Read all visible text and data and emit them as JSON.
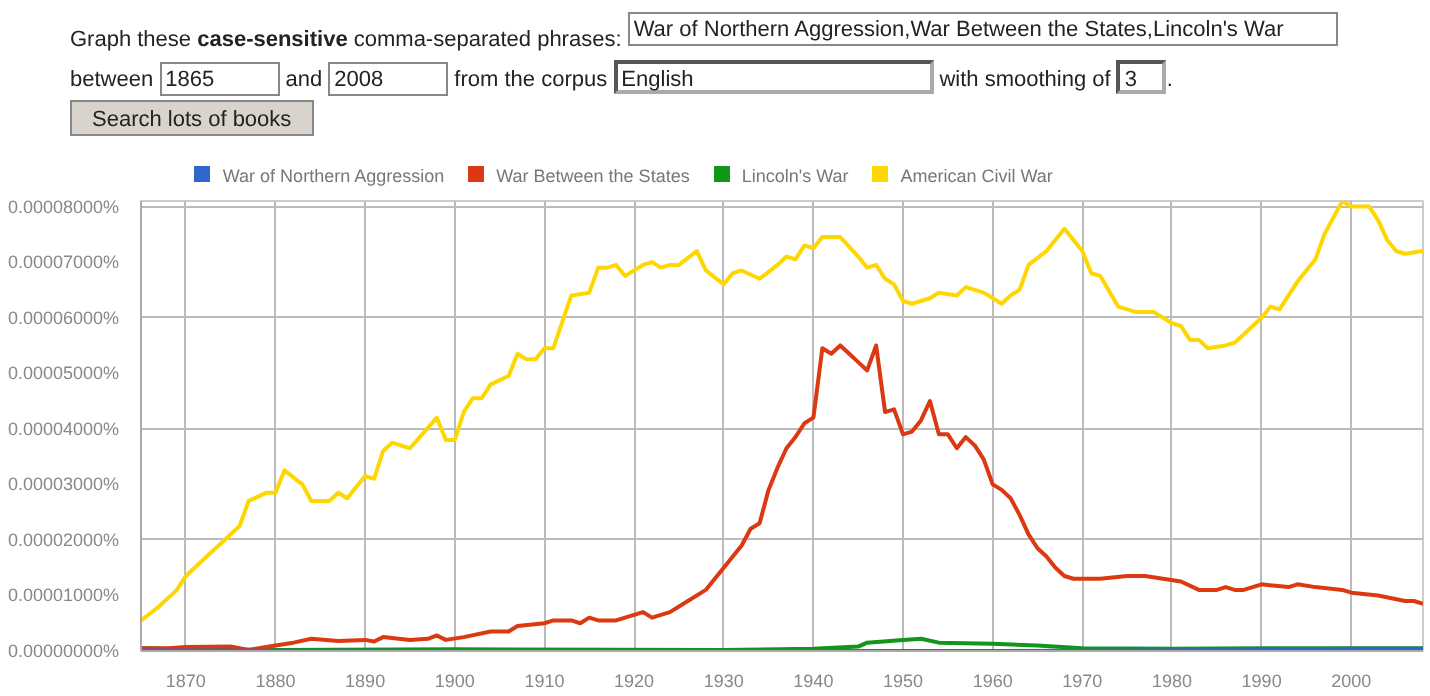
{
  "chart_data": {
    "type": "line",
    "annotations": [
      "Graph these",
      "case-sensitive",
      "comma-separated phrases:",
      "War of Northern Aggression,War Between the States,Lincoln's War",
      "between",
      "1865",
      "and",
      "2008",
      "from the corpus",
      "English",
      "with smoothing of",
      "3",
      ".",
      "Search lots of books"
    ],
    "xlim": [
      1865,
      2008
    ],
    "xticks": [
      1870,
      1880,
      1890,
      1900,
      1910,
      1920,
      1930,
      1940,
      1950,
      1960,
      1970,
      1980,
      1990,
      2000
    ],
    "ylim": [
      0,
      8.1e-05
    ],
    "yticks": [
      {
        "value": 0,
        "label": "0.00000000%"
      },
      {
        "value": 1e-05,
        "label": "0.00001000%"
      },
      {
        "value": 2e-05,
        "label": "0.00002000%"
      },
      {
        "value": 3e-05,
        "label": "0.00003000%"
      },
      {
        "value": 4e-05,
        "label": "0.00004000%"
      },
      {
        "value": 5e-05,
        "label": "0.00005000%"
      },
      {
        "value": 6e-05,
        "label": "0.00006000%"
      },
      {
        "value": 7e-05,
        "label": "0.00007000%"
      },
      {
        "value": 8e-05,
        "label": "0.00008000%"
      }
    ],
    "grid": true,
    "legend": "top",
    "line_style": "solid",
    "series": [
      {
        "name": "War of Northern Aggression",
        "color": "#3366cc",
        "x": [
          1865,
          1900,
          1960,
          1990,
          2000,
          2008
        ],
        "values": [
          1e-07,
          0,
          0,
          2e-07,
          4e-07,
          4e-07
        ]
      },
      {
        "name": "War Between the States",
        "color": "#dc3912",
        "x": [
          1865,
          1868,
          1870,
          1875,
          1877,
          1880,
          1882,
          1884,
          1887,
          1890,
          1891,
          1892,
          1895,
          1897,
          1898,
          1899,
          1901,
          1904,
          1906,
          1907,
          1910,
          1911,
          1913,
          1914,
          1915,
          1916,
          1918,
          1920,
          1921,
          1922,
          1924,
          1926,
          1928,
          1929,
          1930,
          1932,
          1933,
          1934,
          1935,
          1936,
          1937,
          1938,
          1939,
          1940,
          1941,
          1942,
          1943,
          1944,
          1945,
          1946,
          1947,
          1948,
          1949,
          1950,
          1951,
          1952,
          1953,
          1954,
          1955,
          1956,
          1957,
          1958,
          1959,
          1960,
          1961,
          1962,
          1963,
          1964,
          1965,
          1966,
          1967,
          1968,
          1969,
          1970,
          1972,
          1975,
          1977,
          1979,
          1981,
          1983,
          1985,
          1986,
          1987,
          1988,
          1990,
          1993,
          1994,
          1996,
          1999,
          2000,
          2003,
          2006,
          2007,
          2008
        ],
        "values": [
          5e-07,
          5e-07,
          7e-07,
          8e-07,
          2e-07,
          1e-06,
          1.5e-06,
          2.2e-06,
          1.8e-06,
          2e-06,
          1.7e-06,
          2.5e-06,
          2e-06,
          2.2e-06,
          2.8e-06,
          2e-06,
          2.5e-06,
          3.5e-06,
          3.5e-06,
          4.5e-06,
          5e-06,
          5.5e-06,
          5.5e-06,
          5e-06,
          6e-06,
          5.5e-06,
          5.5e-06,
          6.5e-06,
          7e-06,
          6e-06,
          7e-06,
          9e-06,
          1.1e-05,
          1.3e-05,
          1.5e-05,
          1.9e-05,
          2.2e-05,
          2.3e-05,
          2.9e-05,
          3.3e-05,
          3.65e-05,
          3.85e-05,
          4.1e-05,
          4.2e-05,
          5.45e-05,
          5.35e-05,
          5.5e-05,
          5.35e-05,
          5.2e-05,
          5.05e-05,
          5.5e-05,
          4.3e-05,
          4.35e-05,
          3.9e-05,
          3.95e-05,
          4.15e-05,
          4.5e-05,
          3.9e-05,
          3.9e-05,
          3.65e-05,
          3.85e-05,
          3.7e-05,
          3.45e-05,
          3e-05,
          2.9e-05,
          2.75e-05,
          2.45e-05,
          2.1e-05,
          1.85e-05,
          1.7e-05,
          1.5e-05,
          1.35e-05,
          1.3e-05,
          1.3e-05,
          1.3e-05,
          1.35e-05,
          1.35e-05,
          1.3e-05,
          1.25e-05,
          1.1e-05,
          1.1e-05,
          1.15e-05,
          1.1e-05,
          1.1e-05,
          1.2e-05,
          1.15e-05,
          1.2e-05,
          1.15e-05,
          1.1e-05,
          1.05e-05,
          1e-05,
          9e-06,
          9e-06,
          8.5e-06
        ]
      },
      {
        "name": "Lincoln's War",
        "color": "#109618",
        "x": [
          1865,
          1870,
          1880,
          1900,
          1930,
          1940,
          1945,
          1946,
          1950,
          1952,
          1954,
          1960,
          1965,
          1970,
          1980,
          1990,
          2000,
          2008
        ],
        "values": [
          5e-07,
          3e-07,
          2e-07,
          3e-07,
          2e-07,
          4e-07,
          8e-07,
          1.5e-06,
          2e-06,
          2.2e-06,
          1.5e-06,
          1.3e-06,
          1e-06,
          5e-07,
          4e-07,
          5e-07,
          5e-07,
          5e-07
        ]
      },
      {
        "name": "American Civil War",
        "color": "#ffd700",
        "x": [
          1865,
          1867,
          1869,
          1870,
          1872,
          1874,
          1876,
          1877,
          1879,
          1880,
          1881,
          1883,
          1884,
          1886,
          1887,
          1888,
          1890,
          1891,
          1892,
          1893,
          1895,
          1898,
          1899,
          1900,
          1901,
          1902,
          1903,
          1904,
          1906,
          1907,
          1908,
          1909,
          1910,
          1911,
          1913,
          1915,
          1916,
          1917,
          1918,
          1919,
          1921,
          1922,
          1923,
          1924,
          1925,
          1927,
          1928,
          1930,
          1931,
          1932,
          1934,
          1936,
          1937,
          1938,
          1939,
          1940,
          1941,
          1943,
          1945,
          1946,
          1947,
          1948,
          1949,
          1950,
          1951,
          1953,
          1954,
          1956,
          1957,
          1959,
          1961,
          1962,
          1963,
          1964,
          1966,
          1968,
          1970,
          1971,
          1972,
          1974,
          1976,
          1978,
          1980,
          1981,
          1982,
          1983,
          1984,
          1986,
          1987,
          1989,
          1990,
          1991,
          1992,
          1994,
          1996,
          1997,
          1998,
          1999,
          2000,
          2002,
          2003,
          2004,
          2005,
          2006,
          2008
        ],
        "values": [
          5.5e-06,
          8e-06,
          1.1e-05,
          1.35e-05,
          1.65e-05,
          1.95e-05,
          2.25e-05,
          2.7e-05,
          2.85e-05,
          2.85e-05,
          3.25e-05,
          3e-05,
          2.7e-05,
          2.7e-05,
          2.85e-05,
          2.75e-05,
          3.15e-05,
          3.1e-05,
          3.6e-05,
          3.75e-05,
          3.65e-05,
          4.2e-05,
          3.8e-05,
          3.8e-05,
          4.3e-05,
          4.55e-05,
          4.55e-05,
          4.8e-05,
          4.95e-05,
          5.35e-05,
          5.25e-05,
          5.25e-05,
          5.45e-05,
          5.45e-05,
          6.4e-05,
          6.45e-05,
          6.9e-05,
          6.9e-05,
          6.95e-05,
          6.75e-05,
          6.95e-05,
          7e-05,
          6.9e-05,
          6.95e-05,
          6.95e-05,
          7.2e-05,
          6.85e-05,
          6.6e-05,
          6.8e-05,
          6.85e-05,
          6.7e-05,
          6.95e-05,
          7.1e-05,
          7.05e-05,
          7.3e-05,
          7.25e-05,
          7.45e-05,
          7.45e-05,
          7.1e-05,
          6.9e-05,
          6.95e-05,
          6.7e-05,
          6.6e-05,
          6.3e-05,
          6.25e-05,
          6.35e-05,
          6.45e-05,
          6.4e-05,
          6.55e-05,
          6.45e-05,
          6.25e-05,
          6.4e-05,
          6.5e-05,
          6.95e-05,
          7.2e-05,
          7.6e-05,
          7.2e-05,
          6.8e-05,
          6.75e-05,
          6.2e-05,
          6.1e-05,
          6.1e-05,
          5.9e-05,
          5.85e-05,
          5.6e-05,
          5.6e-05,
          5.45e-05,
          5.5e-05,
          5.55e-05,
          5.85e-05,
          6e-05,
          6.2e-05,
          6.15e-05,
          6.65e-05,
          7.05e-05,
          7.5e-05,
          7.8e-05,
          8.1e-05,
          8e-05,
          8e-05,
          7.75e-05,
          7.4e-05,
          7.2e-05,
          7.15e-05,
          7.2e-05
        ]
      }
    ]
  }
}
